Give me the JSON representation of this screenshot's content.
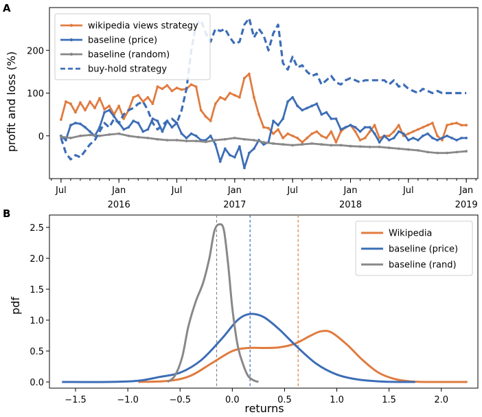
{
  "colors": {
    "orange": "#E07B3F",
    "blue": "#3C6DB6",
    "gray": "#888888",
    "axis": "#000000"
  },
  "chart_data": [
    {
      "panel": "A",
      "type": "line",
      "ylabel": "profit and loss (%)",
      "xlabel": "",
      "ylim": [
        -100,
        300
      ],
      "yticks": [
        0,
        100,
        200
      ],
      "x_start": "2015-06",
      "x_end": "2019-02",
      "xticks": [
        {
          "t": 0,
          "label": "Jul",
          "year": ""
        },
        {
          "t": 6,
          "label": "Jan",
          "year": "2016"
        },
        {
          "t": 12,
          "label": "Jul",
          "year": ""
        },
        {
          "t": 18,
          "label": "Jan",
          "year": "2017"
        },
        {
          "t": 24,
          "label": "Jul",
          "year": ""
        },
        {
          "t": 30,
          "label": "Jan",
          "year": "2018"
        },
        {
          "t": 36,
          "label": "Jul",
          "year": ""
        },
        {
          "t": 42,
          "label": "Jan",
          "year": "2019"
        }
      ],
      "legend_position": "top-left",
      "series": [
        {
          "name": "wikipedia views strategy",
          "color": "#E07B3F",
          "style": "solid-marker",
          "x": [
            0,
            0.5,
            1,
            1.5,
            2,
            2.5,
            3,
            3.5,
            4,
            4.5,
            5,
            5.5,
            6,
            6.5,
            7,
            7.5,
            8,
            8.5,
            9,
            9.5,
            10,
            10.5,
            11,
            11.5,
            12,
            12.5,
            13,
            13.5,
            14,
            14.5,
            15,
            15.5,
            16,
            16.5,
            17,
            17.5,
            18,
            18.5,
            19,
            19.5,
            20,
            20.5,
            21,
            21.5,
            22,
            22.5,
            23,
            23.5,
            24,
            24.5,
            25,
            25.5,
            26,
            26.5,
            27,
            27.5,
            28,
            28.5,
            29,
            29.5,
            30,
            30.5,
            31,
            31.5,
            32,
            32.5,
            33,
            33.5,
            34,
            34.5,
            35,
            35.5,
            36,
            36.5,
            37,
            37.5,
            38,
            38.5,
            39,
            39.5,
            40,
            40.5,
            41,
            41.5,
            42
          ],
          "y": [
            38,
            80,
            75,
            55,
            78,
            60,
            80,
            65,
            88,
            62,
            70,
            50,
            70,
            40,
            60,
            90,
            95,
            80,
            90,
            75,
            115,
            110,
            118,
            105,
            112,
            108,
            110,
            120,
            115,
            60,
            45,
            35,
            75,
            90,
            85,
            100,
            95,
            90,
            135,
            145,
            90,
            50,
            20,
            18,
            5,
            15,
            -5,
            5,
            0,
            -5,
            -15,
            -5,
            5,
            10,
            0,
            -5,
            10,
            -15,
            10,
            20,
            25,
            10,
            -10,
            -5,
            10,
            25,
            -5,
            0,
            0,
            10,
            25,
            0,
            5,
            10,
            15,
            20,
            25,
            30,
            0,
            -10,
            25,
            28,
            30,
            25,
            25
          ]
        },
        {
          "name": "baseline (price)",
          "color": "#3C6DB6",
          "style": "solid-marker",
          "x": [
            0,
            0.5,
            1,
            1.5,
            2,
            2.5,
            3,
            3.5,
            4,
            4.5,
            5,
            5.5,
            6,
            6.5,
            7,
            7.5,
            8,
            8.5,
            9,
            9.5,
            10,
            10.5,
            11,
            11.5,
            12,
            12.5,
            13,
            13.5,
            14,
            14.5,
            15,
            15.5,
            16,
            16.5,
            17,
            17.5,
            18,
            18.5,
            19,
            19.5,
            20,
            20.5,
            21,
            21.5,
            22,
            22.5,
            23,
            23.5,
            24,
            24.5,
            25,
            25.5,
            26,
            26.5,
            27,
            27.5,
            28,
            28.5,
            29,
            29.5,
            30,
            30.5,
            31,
            31.5,
            32,
            32.5,
            33,
            33.5,
            34,
            34.5,
            35,
            35.5,
            36,
            36.5,
            37,
            37.5,
            38,
            38.5,
            39,
            39.5,
            40,
            40.5,
            41,
            41.5,
            42
          ],
          "y": [
            0,
            -10,
            25,
            30,
            28,
            20,
            10,
            0,
            20,
            55,
            60,
            45,
            30,
            15,
            20,
            35,
            30,
            10,
            15,
            40,
            35,
            10,
            35,
            20,
            30,
            5,
            -5,
            5,
            0,
            -10,
            -10,
            0,
            -20,
            -60,
            -30,
            -45,
            -50,
            -25,
            -75,
            -40,
            -30,
            -10,
            -20,
            -15,
            35,
            25,
            40,
            80,
            90,
            70,
            60,
            65,
            70,
            75,
            50,
            55,
            40,
            40,
            15,
            20,
            25,
            20,
            10,
            20,
            20,
            5,
            -15,
            0,
            -10,
            -5,
            10,
            5,
            -10,
            -5,
            -10,
            0,
            5,
            -5,
            -10,
            -5,
            0,
            -5,
            -10,
            -5,
            -5
          ]
        },
        {
          "name": "baseline (random)",
          "color": "#888888",
          "style": "solid-marker",
          "x": [
            0,
            1,
            2,
            3,
            4,
            5,
            6,
            7,
            8,
            9,
            10,
            11,
            12,
            13,
            14,
            15,
            16,
            17,
            18,
            19,
            20,
            21,
            22,
            23,
            24,
            25,
            26,
            27,
            28,
            29,
            30,
            31,
            32,
            33,
            34,
            35,
            36,
            37,
            38,
            39,
            40,
            41,
            42
          ],
          "y": [
            -2,
            -5,
            0,
            2,
            0,
            3,
            5,
            0,
            -3,
            -5,
            -8,
            -10,
            -10,
            -12,
            -12,
            -14,
            -10,
            -8,
            -5,
            -8,
            -10,
            -15,
            -18,
            -20,
            -22,
            -20,
            -18,
            -20,
            -22,
            -22,
            -24,
            -25,
            -26,
            -26,
            -28,
            -30,
            -32,
            -34,
            -38,
            -40,
            -40,
            -38,
            -36
          ]
        },
        {
          "name": "buy-hold strategy",
          "color": "#3C6DB6",
          "style": "dashed",
          "x": [
            0,
            0.5,
            1,
            1.5,
            2,
            2.5,
            3,
            3.5,
            4,
            4.5,
            5,
            5.5,
            6,
            6.5,
            7,
            7.5,
            8,
            8.5,
            9,
            9.5,
            10,
            10.5,
            11,
            11.5,
            12,
            12.5,
            13,
            13.5,
            14,
            14.5,
            15,
            15.5,
            16,
            16.5,
            17,
            17.5,
            18,
            18.5,
            19,
            19.5,
            20,
            20.5,
            21,
            21.5,
            22,
            22.5,
            23,
            23.5,
            24,
            24.5,
            25,
            25.5,
            26,
            26.5,
            27,
            27.5,
            28,
            28.5,
            29,
            29.5,
            30,
            30.5,
            31,
            31.5,
            32,
            32.5,
            33,
            33.5,
            34,
            34.5,
            35,
            35.5,
            36,
            36.5,
            37,
            37.5,
            38,
            38.5,
            39,
            39.5,
            40,
            40.5,
            41,
            41.5,
            42
          ],
          "y": [
            -5,
            -40,
            -55,
            -45,
            -50,
            -35,
            -20,
            -10,
            10,
            30,
            20,
            40,
            30,
            50,
            60,
            65,
            75,
            80,
            60,
            30,
            15,
            25,
            35,
            40,
            30,
            60,
            110,
            200,
            260,
            270,
            240,
            220,
            250,
            245,
            250,
            230,
            215,
            220,
            260,
            275,
            230,
            250,
            235,
            200,
            240,
            260,
            170,
            155,
            185,
            160,
            165,
            150,
            140,
            145,
            120,
            130,
            140,
            125,
            120,
            130,
            135,
            130,
            125,
            130,
            130,
            130,
            130,
            130,
            120,
            130,
            115,
            120,
            110,
            105,
            100,
            110,
            105,
            100,
            105,
            100,
            100,
            100,
            100,
            100,
            100
          ]
        }
      ]
    },
    {
      "panel": "B",
      "type": "line",
      "xlabel": "returns",
      "ylabel": "pdf",
      "xlim": [
        -1.75,
        2.35
      ],
      "ylim": [
        -0.1,
        2.7
      ],
      "xticks": [
        -1.5,
        -1.0,
        -0.5,
        0.0,
        0.5,
        1.0,
        1.5,
        2.0
      ],
      "xtick_labels": [
        "−1.5",
        "−1.0",
        "−0.5",
        "0.0",
        "0.5",
        "1.0",
        "1.5",
        "2.0"
      ],
      "yticks": [
        0.0,
        0.5,
        1.0,
        1.5,
        2.0,
        2.5
      ],
      "ytick_labels": [
        "0.0",
        "0.5",
        "1.0",
        "1.5",
        "2.0",
        "2.5"
      ],
      "legend_position": "top-right",
      "series": [
        {
          "name": "Wikipedia",
          "color": "#E07B3F",
          "x": [
            -0.9,
            -0.6,
            -0.4,
            -0.2,
            0.0,
            0.15,
            0.3,
            0.45,
            0.6,
            0.75,
            0.85,
            0.95,
            1.1,
            1.25,
            1.4,
            1.55,
            1.7,
            1.9,
            2.25
          ],
          "y": [
            0.0,
            0.02,
            0.1,
            0.3,
            0.5,
            0.55,
            0.55,
            0.56,
            0.62,
            0.75,
            0.82,
            0.8,
            0.6,
            0.35,
            0.15,
            0.05,
            0.01,
            0.0,
            0.0
          ],
          "mean": 0.63
        },
        {
          "name": "baseline (price)",
          "color": "#3C6DB6",
          "x": [
            -1.63,
            -1.2,
            -0.9,
            -0.7,
            -0.5,
            -0.3,
            -0.1,
            0.05,
            0.17,
            0.3,
            0.45,
            0.6,
            0.8,
            1.0,
            1.2,
            1.4,
            1.6,
            1.75
          ],
          "y": [
            0.0,
            0.0,
            0.02,
            0.08,
            0.15,
            0.35,
            0.7,
            1.0,
            1.1,
            1.05,
            0.85,
            0.6,
            0.3,
            0.12,
            0.04,
            0.01,
            0.0,
            0.0
          ],
          "mean": 0.17
        },
        {
          "name": "baseline (rand)",
          "color": "#888888",
          "x": [
            -0.62,
            -0.55,
            -0.48,
            -0.42,
            -0.35,
            -0.28,
            -0.22,
            -0.17,
            -0.12,
            -0.08,
            -0.04,
            0.0,
            0.05,
            0.1,
            0.15,
            0.2,
            0.25
          ],
          "y": [
            0.0,
            0.1,
            0.4,
            0.9,
            1.3,
            1.6,
            2.0,
            2.45,
            2.55,
            2.45,
            1.9,
            1.2,
            0.6,
            0.3,
            0.1,
            0.03,
            0.0
          ],
          "mean": -0.15
        }
      ]
    }
  ]
}
